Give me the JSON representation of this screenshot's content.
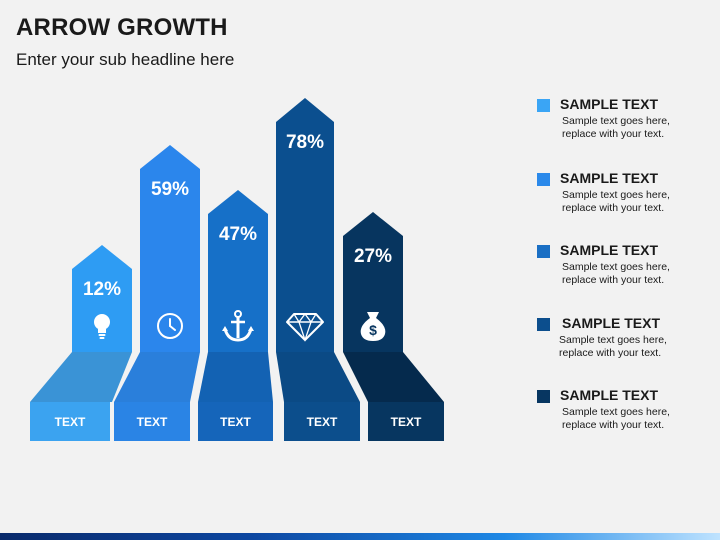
{
  "header": {
    "title": "ARROW GROWTH",
    "subtitle": "Enter your sub headline here"
  },
  "arrows": [
    {
      "percent": "12%",
      "value": 12,
      "label": "TEXT",
      "icon": "lightbulb-icon",
      "color": "#2e9cf3",
      "shade": "#3a93d6",
      "base": "#3ba3f0"
    },
    {
      "percent": "59%",
      "value": 59,
      "label": "TEXT",
      "icon": "clock-icon",
      "color": "#2b86ec",
      "shade": "#2a7fdb",
      "base": "#2a84e5"
    },
    {
      "percent": "47%",
      "value": 47,
      "label": "TEXT",
      "icon": "anchor-icon",
      "color": "#1670c8",
      "shade": "#1362b3",
      "base": "#1565ba"
    },
    {
      "percent": "78%",
      "value": 78,
      "label": "TEXT",
      "icon": "diamond-icon",
      "color": "#0b4f8f",
      "shade": "#0b4a85",
      "base": "#0c4e8c"
    },
    {
      "percent": "27%",
      "value": 27,
      "label": "TEXT",
      "icon": "money-bag-icon",
      "color": "#07355f",
      "shade": "#052a4d",
      "base": "#073660"
    }
  ],
  "legend": [
    {
      "title": "SAMPLE TEXT",
      "desc": "Sample text goes here, replace with your text.",
      "color": "#3aa5f5"
    },
    {
      "title": "SAMPLE TEXT",
      "desc": "Sample text goes here, replace with your text.",
      "color": "#2b89ea"
    },
    {
      "title": "SAMPLE TEXT",
      "desc": "Sample text goes here, replace with your text.",
      "color": "#1a6fc4"
    },
    {
      "title": "SAMPLE TEXT",
      "desc": "Sample text goes here, replace with your text.",
      "color": "#0c4e8d"
    },
    {
      "title": "SAMPLE TEXT",
      "desc": "Sample text goes here, replace with your text.",
      "color": "#073661"
    }
  ]
}
